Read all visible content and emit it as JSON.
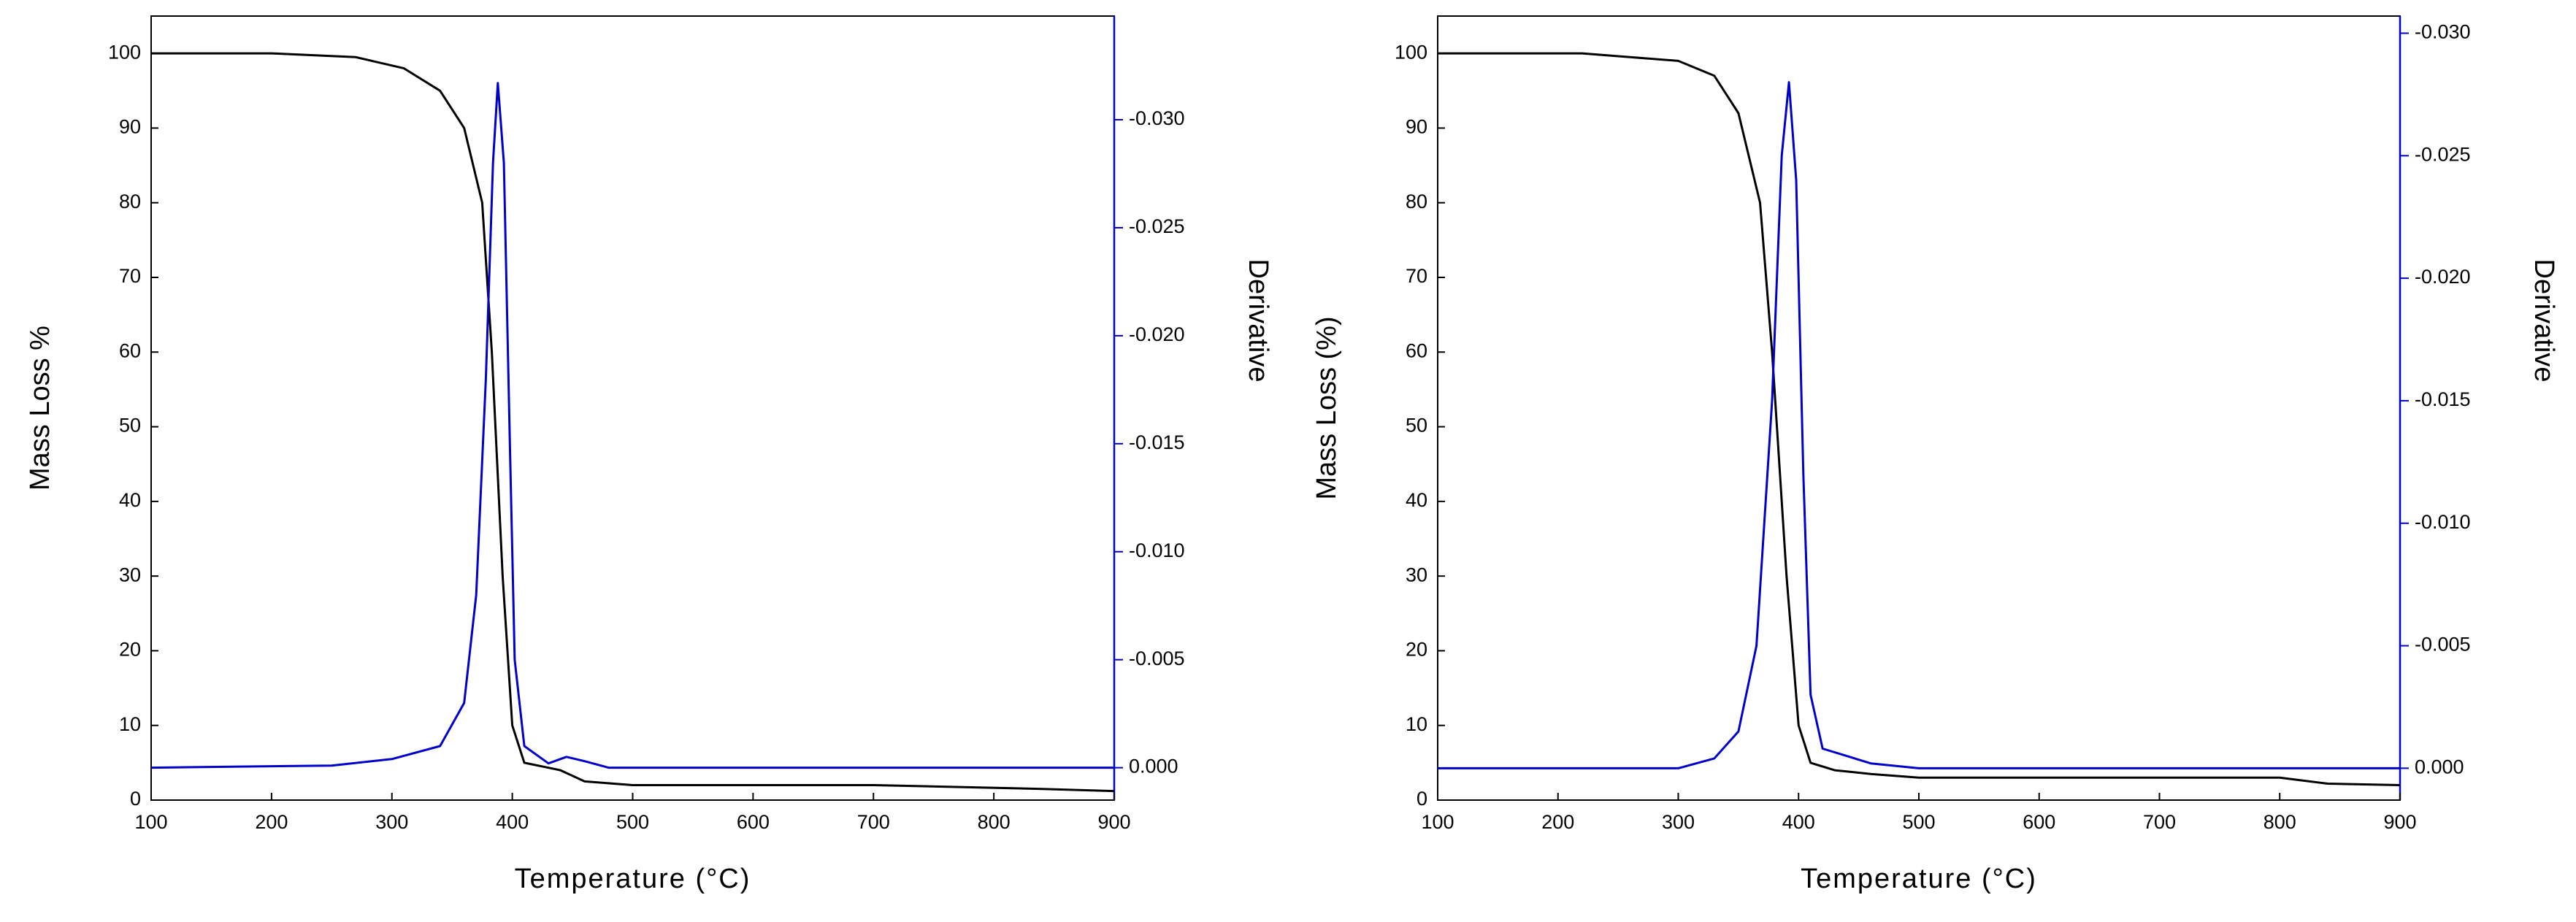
{
  "chart_data": [
    {
      "type": "line",
      "xlabel": "Temperature (°C)",
      "ylabel": "Mass Loss %",
      "y2label": "Derivative",
      "y2color": "#0000cc",
      "xlim": [
        100,
        900
      ],
      "xticks": [
        100,
        200,
        300,
        400,
        500,
        600,
        700,
        800,
        900
      ],
      "ylim": [
        0,
        105
      ],
      "yticks": [
        0,
        10,
        20,
        30,
        40,
        50,
        60,
        70,
        80,
        90,
        100
      ],
      "y2lim": [
        0.0015,
        -0.0348
      ],
      "y2ticks": [
        {
          "value": 0,
          "label": "0.000"
        },
        {
          "value": -0.005,
          "label": "-0.005"
        },
        {
          "value": -0.01,
          "label": "-0.010"
        },
        {
          "value": -0.015,
          "label": "-0.015"
        },
        {
          "value": -0.02,
          "label": "-0.020"
        },
        {
          "value": -0.025,
          "label": "-0.025"
        },
        {
          "value": -0.03,
          "label": "-0.030"
        }
      ],
      "series": [
        {
          "color": "#000000",
          "x": [
            100,
            200,
            270,
            310,
            340,
            360,
            375,
            383,
            392,
            400,
            410,
            440,
            460,
            500,
            700,
            840,
            900
          ],
          "values": [
            100,
            100,
            99.5,
            98,
            95,
            90,
            80,
            60,
            30,
            10,
            5,
            4,
            2.5,
            2,
            2,
            1.5,
            1.2
          ]
        },
        {
          "color": "#0000cc",
          "axis": "y2",
          "x": [
            100,
            250,
            300,
            340,
            360,
            370,
            378,
            384,
            388,
            393,
            398,
            402,
            410,
            430,
            445,
            460,
            480,
            900
          ],
          "values": [
            0,
            -0.0001,
            -0.0004,
            -0.001,
            -0.003,
            -0.008,
            -0.018,
            -0.028,
            -0.0317,
            -0.028,
            -0.015,
            -0.005,
            -0.001,
            -0.0002,
            -0.0005,
            -0.0003,
            0,
            0
          ]
        }
      ]
    },
    {
      "type": "line",
      "xlabel": "Temperature (°C)",
      "ylabel": "Mass Loss (%)",
      "y2label": "Derivative",
      "y2color": "#0000cc",
      "xlim": [
        100,
        900
      ],
      "xticks": [
        100,
        200,
        300,
        400,
        500,
        600,
        700,
        800,
        900
      ],
      "ylim": [
        0,
        105
      ],
      "yticks": [
        0,
        10,
        20,
        30,
        40,
        50,
        60,
        70,
        80,
        90,
        100
      ],
      "y2lim": [
        0.0013,
        -0.0307
      ],
      "y2ticks": [
        {
          "value": 0,
          "label": "0.000"
        },
        {
          "value": -0.005,
          "label": "-0.005"
        },
        {
          "value": -0.01,
          "label": "-0.010"
        },
        {
          "value": -0.015,
          "label": "-0.015"
        },
        {
          "value": -0.02,
          "label": "-0.020"
        },
        {
          "value": -0.025,
          "label": "-0.025"
        },
        {
          "value": -0.03,
          "label": "-0.030"
        }
      ],
      "series": [
        {
          "color": "#000000",
          "x": [
            100,
            220,
            300,
            330,
            350,
            368,
            378,
            390,
            400,
            410,
            430,
            460,
            500,
            800,
            840,
            900
          ],
          "values": [
            100,
            100,
            99,
            97,
            92,
            80,
            60,
            30,
            10,
            5,
            4,
            3.5,
            3,
            3,
            2.2,
            2
          ]
        },
        {
          "color": "#0000cc",
          "axis": "y2",
          "x": [
            100,
            300,
            330,
            350,
            365,
            378,
            386,
            392,
            398,
            404,
            410,
            420,
            440,
            460,
            500,
            900
          ],
          "values": [
            0,
            0,
            -0.0004,
            -0.0015,
            -0.005,
            -0.015,
            -0.025,
            -0.028,
            -0.024,
            -0.012,
            -0.003,
            -0.0008,
            -0.0005,
            -0.0002,
            0,
            0
          ]
        }
      ]
    }
  ]
}
